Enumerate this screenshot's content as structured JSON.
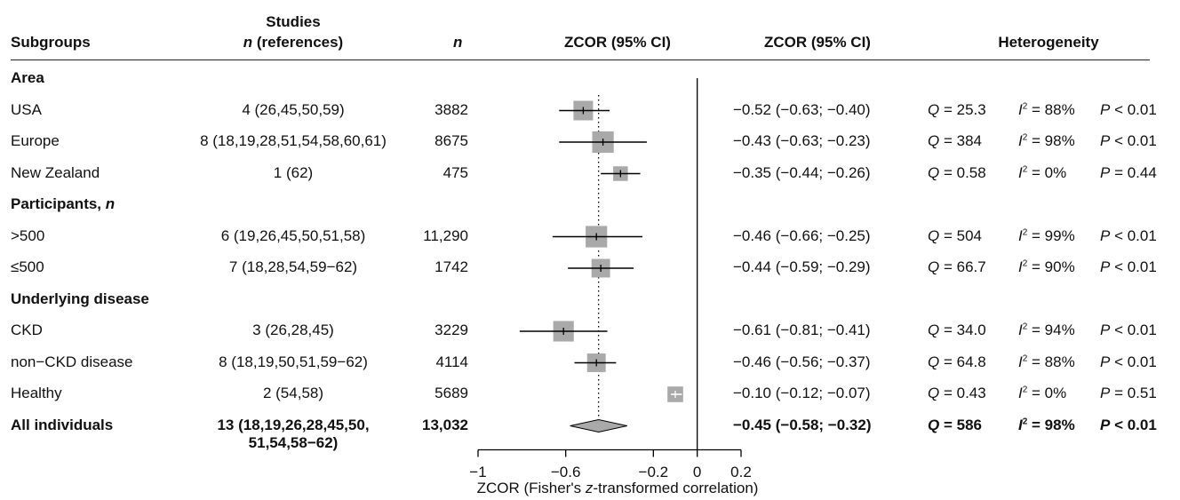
{
  "headers": {
    "subgroups": "Subgroups",
    "studies_line1": "Studies",
    "studies_line2_n": "n",
    "studies_line2_rest": "(references)",
    "n": "n",
    "plot": "ZCOR (95% CI)",
    "ci": "ZCOR (95% CI)",
    "heterogeneity": "Heterogeneity"
  },
  "rows": [
    {
      "type": "section",
      "label": "Area"
    },
    {
      "type": "data",
      "label": "USA",
      "studies": "4 (26,45,50,59)",
      "n": "3882",
      "ci": "−0.52 (−0.63; −0.40)",
      "Q": "25.3",
      "I2": "88%",
      "P": "< 0.01"
    },
    {
      "type": "data",
      "label": "Europe",
      "studies": "8 (18,19,28,51,54,58,60,61)",
      "n": "8675",
      "ci": "−0.43 (−0.63; −0.23)",
      "Q": "384",
      "I2": "98%",
      "P": "< 0.01"
    },
    {
      "type": "data",
      "label": "New Zealand",
      "studies": "1 (62)",
      "n": "475",
      "ci": "−0.35 (−0.44; −0.26)",
      "Q": "0.58",
      "I2": "0%",
      "P": "= 0.44"
    },
    {
      "type": "section",
      "label": "Participants, ",
      "label_italic": "n"
    },
    {
      "type": "data",
      "label": ">500",
      "studies": "6 (19,26,45,50,51,58)",
      "n": "11,290",
      "ci": "−0.46 (−0.66; −0.25)",
      "Q": "504",
      "I2": "99%",
      "P": "< 0.01"
    },
    {
      "type": "data",
      "label": "≤500",
      "studies": "7 (18,28,54,59−62)",
      "n": "1742",
      "ci": "−0.44 (−0.59; −0.29)",
      "Q": "66.7",
      "I2": "90%",
      "P": "< 0.01"
    },
    {
      "type": "section",
      "label": "Underlying disease"
    },
    {
      "type": "data",
      "label": "CKD",
      "studies": "3 (26,28,45)",
      "n": "3229",
      "ci": "−0.61 (−0.81; −0.41)",
      "Q": "34.0",
      "I2": "94%",
      "P": "< 0.01"
    },
    {
      "type": "data",
      "label": "non−CKD disease",
      "studies": "8 (18,19,50,51,59−62)",
      "n": "4114",
      "ci": "−0.46 (−0.56; −0.37)",
      "Q": "64.8",
      "I2": "88%",
      "P": "< 0.01"
    },
    {
      "type": "data",
      "label": "Healthy",
      "studies": "2 (54,58)",
      "n": "5689",
      "ci": "−0.10 (−0.12; −0.07)",
      "Q": "0.43",
      "I2": "0%",
      "P": "= 0.51"
    },
    {
      "type": "total",
      "label": "All individuals",
      "studies": "13 (18,19,26,28,45,50,",
      "studies_line2": "51,54,58−62)",
      "n": "13,032",
      "ci": "−0.45 (−0.58; −0.32)",
      "Q": "586",
      "I2": "98%",
      "P": "< 0.01"
    }
  ],
  "het_labels": {
    "Q": "Q",
    "Q_eq": " = ",
    "I": "I",
    "I_sup": "2",
    "I_eq": " = ",
    "P": "P",
    "P_space": " "
  },
  "chart_data": {
    "type": "forest",
    "xlabel_pre": "ZCOR (Fisher's ",
    "xlabel_italic": "z",
    "xlabel_post": "-transformed correlation)",
    "xlim": [
      -1,
      0.2
    ],
    "ticks": [
      -1,
      -0.6,
      -0.2,
      0,
      0.2
    ],
    "tick_labels": [
      "−1",
      "−0.6",
      "−0.2",
      "0",
      "0.2"
    ],
    "reference_line": 0,
    "pooled_line": -0.45,
    "studies": [
      {
        "name": "USA",
        "est": -0.52,
        "lo": -0.63,
        "hi": -0.4,
        "weight": 1.0
      },
      {
        "name": "Europe",
        "est": -0.43,
        "lo": -0.63,
        "hi": -0.23,
        "weight": 1.1
      },
      {
        "name": "New Zealand",
        "est": -0.35,
        "lo": -0.44,
        "hi": -0.26,
        "weight": 0.75
      },
      {
        "name": ">500",
        "est": -0.46,
        "lo": -0.66,
        "hi": -0.25,
        "weight": 1.1
      },
      {
        "name": "≤500",
        "est": -0.44,
        "lo": -0.59,
        "hi": -0.29,
        "weight": 0.95
      },
      {
        "name": "CKD",
        "est": -0.61,
        "lo": -0.81,
        "hi": -0.41,
        "weight": 1.05
      },
      {
        "name": "non−CKD disease",
        "est": -0.46,
        "lo": -0.56,
        "hi": -0.37,
        "weight": 0.95
      },
      {
        "name": "Healthy",
        "est": -0.1,
        "lo": -0.12,
        "hi": -0.07,
        "weight": 0.8
      }
    ],
    "pooled": {
      "name": "All individuals",
      "est": -0.45,
      "lo": -0.58,
      "hi": -0.32
    },
    "colors": {
      "box": "#a9a9a9",
      "line": "#000000",
      "diamond": "#a9a9a9"
    }
  }
}
